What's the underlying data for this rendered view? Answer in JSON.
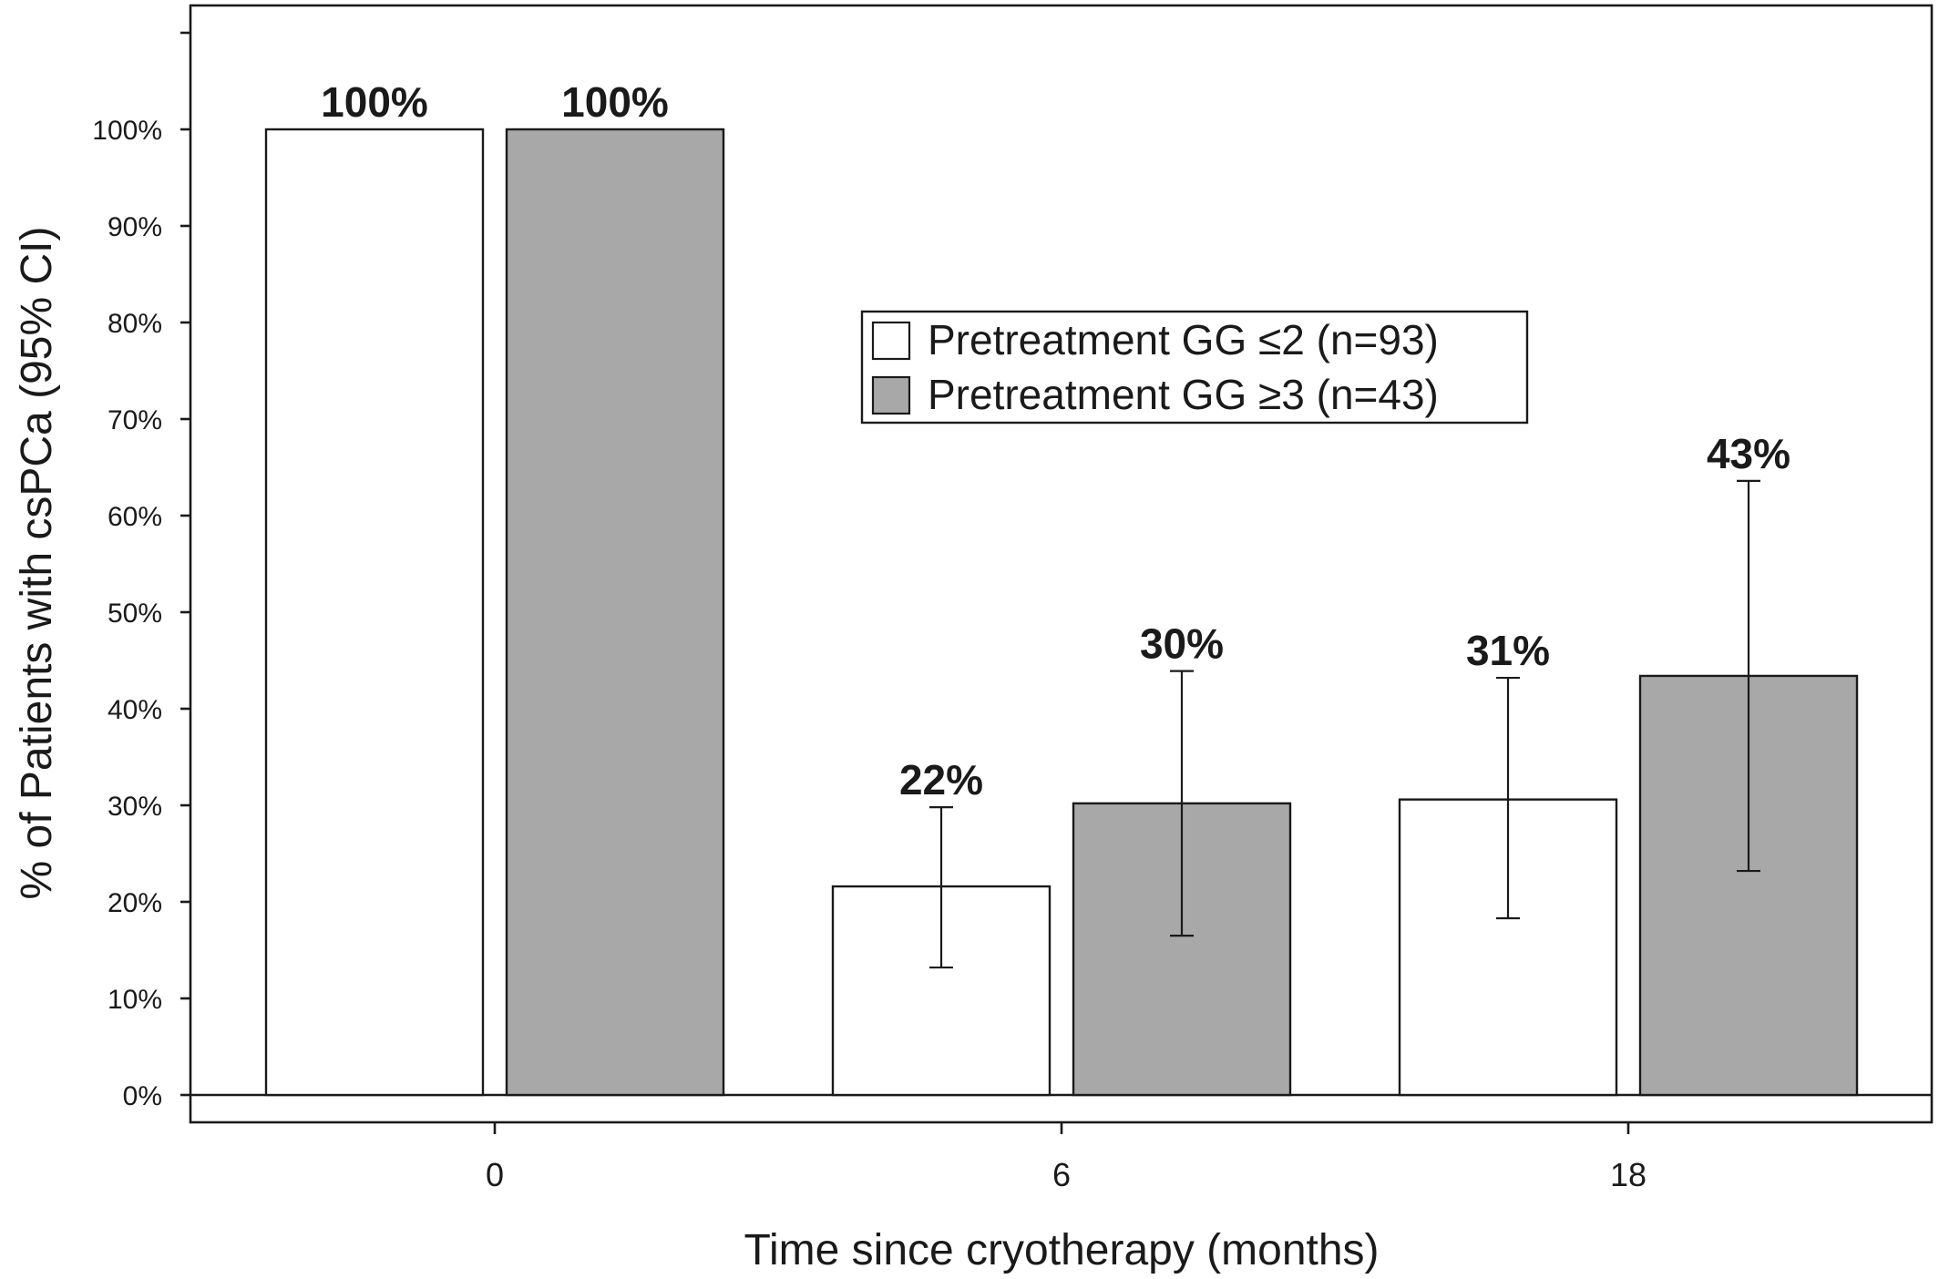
{
  "chart_data": {
    "type": "bar",
    "title": "",
    "xlabel": "Time since cryotherapy (months)",
    "ylabel": "% of Patients with csPCa (95% CI)",
    "categories": [
      "0",
      "6",
      "18"
    ],
    "ylim": [
      0,
      1.2
    ],
    "yticks": [
      "0%",
      "10%",
      "20%",
      "30%",
      "40%",
      "50%",
      "60%",
      "70%",
      "80%",
      "90%",
      "100%"
    ],
    "legend_position": "center",
    "series": [
      {
        "name": "Pretreatment GG ≤2 (n=93)",
        "color": "#ffffff",
        "values": [
          1.0,
          0.216,
          0.306
        ],
        "ci_low": [
          null,
          0.132,
          0.183
        ],
        "ci_high": [
          null,
          0.298,
          0.432
        ],
        "labels": [
          "100%",
          "22%",
          "31%"
        ]
      },
      {
        "name": "Pretreatment GG ≥3 (n=43)",
        "color": "#a8a8a8",
        "values": [
          1.0,
          0.302,
          0.434
        ],
        "ci_low": [
          null,
          0.165,
          0.232
        ],
        "ci_high": [
          null,
          0.439,
          0.636
        ],
        "labels": [
          "100%",
          "30%",
          "43%"
        ]
      }
    ]
  }
}
